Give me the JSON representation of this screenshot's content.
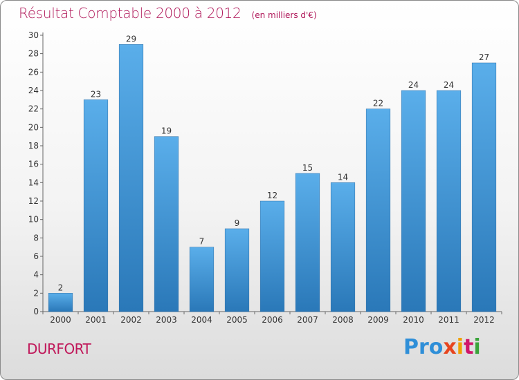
{
  "header": {
    "title": "Résultat Comptable 2000 à 2012",
    "unit": "(en milliers d'€)"
  },
  "footer": {
    "commune": "DURFORT",
    "logo_letters": [
      "Pro",
      "x",
      "i",
      "t",
      "i"
    ]
  },
  "colors": {
    "bar_top": "#5aaeea",
    "bar_bottom": "#2a78b8",
    "title": "#b0185a"
  },
  "chart_data": {
    "type": "bar",
    "title": "Résultat Comptable 2000 à 2012",
    "subtitle": "(en milliers d'€)",
    "xlabel": "",
    "ylabel": "",
    "categories": [
      "2000",
      "2001",
      "2002",
      "2003",
      "2004",
      "2005",
      "2006",
      "2007",
      "2008",
      "2009",
      "2010",
      "2011",
      "2012"
    ],
    "values": [
      2,
      23,
      29,
      19,
      7,
      9,
      12,
      15,
      14,
      22,
      24,
      24,
      27
    ],
    "ylim": [
      0,
      30
    ],
    "yticks": [
      0,
      2,
      4,
      6,
      8,
      10,
      12,
      14,
      16,
      18,
      20,
      22,
      24,
      26,
      28,
      30
    ],
    "grid": false,
    "legend": "none"
  }
}
